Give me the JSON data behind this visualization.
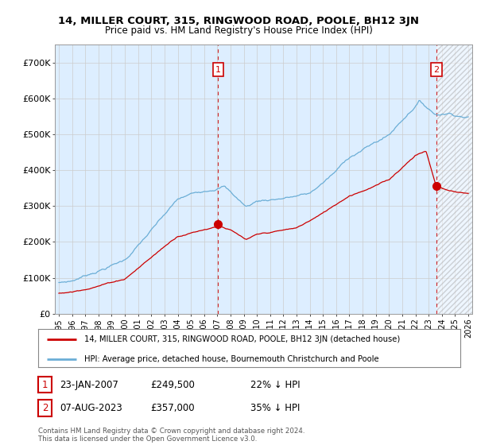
{
  "title_line1": "14, MILLER COURT, 315, RINGWOOD ROAD, POOLE, BH12 3JN",
  "title_line2": "Price paid vs. HM Land Registry's House Price Index (HPI)",
  "ylim": [
    0,
    750000
  ],
  "yticks": [
    0,
    100000,
    200000,
    300000,
    400000,
    500000,
    600000,
    700000
  ],
  "ytick_labels": [
    "£0",
    "£100K",
    "£200K",
    "£300K",
    "£400K",
    "£500K",
    "£600K",
    "£700K"
  ],
  "hpi_color": "#6baed6",
  "price_color": "#cc0000",
  "vline_color": "#cc0000",
  "hatch_color": "#cccccc",
  "bg_fill_color": "#ddeeff",
  "transaction1_x": 2007.06,
  "transaction1_price": 249500,
  "transaction2_x": 2023.6,
  "transaction2_price": 357000,
  "legend_property": "14, MILLER COURT, 315, RINGWOOD ROAD, POOLE, BH12 3JN (detached house)",
  "legend_hpi": "HPI: Average price, detached house, Bournemouth Christchurch and Poole",
  "note1_label": "1",
  "note1_date": "23-JAN-2007",
  "note1_price": "£249,500",
  "note1_pct": "22% ↓ HPI",
  "note2_label": "2",
  "note2_date": "07-AUG-2023",
  "note2_price": "£357,000",
  "note2_pct": "35% ↓ HPI",
  "footer": "Contains HM Land Registry data © Crown copyright and database right 2024.\nThis data is licensed under the Open Government Licence v3.0.",
  "background_color": "#ffffff",
  "grid_color": "#cccccc",
  "xmin": 1995,
  "xmax": 2026
}
